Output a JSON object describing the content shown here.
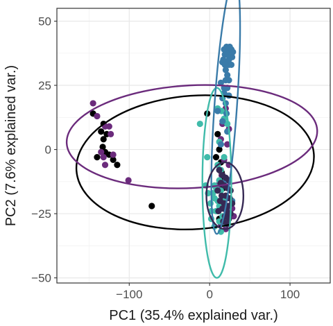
{
  "chart_data": {
    "type": "scatter",
    "title": "",
    "xlabel": "PC1 (35.4% explained var.)",
    "ylabel": "PC2 (7.6% explained var.)",
    "xlim": [
      -190,
      150
    ],
    "ylim": [
      -52,
      55
    ],
    "x_ticks": [
      -100,
      0,
      100
    ],
    "x_tick_labels": [
      "−100",
      "0",
      "100"
    ],
    "y_ticks": [
      -50,
      -25,
      0,
      25,
      50
    ],
    "y_tick_labels": [
      "−50",
      "−25",
      "0",
      "25",
      "50"
    ],
    "grid": true,
    "legend": "none",
    "series": [
      {
        "color": "#000000",
        "points": [
          [
            -145,
            14
          ],
          [
            -135,
            7
          ],
          [
            -132,
            10
          ],
          [
            -132,
            4
          ],
          [
            -128,
            6
          ],
          [
            -133,
            1
          ],
          [
            -125,
            -2
          ],
          [
            -130,
            -1
          ],
          [
            -140,
            -3
          ],
          [
            -120,
            -4
          ],
          [
            -115,
            -6
          ],
          [
            -72,
            -22
          ],
          [
            -3,
            14
          ],
          [
            10,
            6
          ],
          [
            12,
            0
          ],
          [
            8,
            -3
          ],
          [
            14,
            -5
          ],
          [
            15,
            -9
          ],
          [
            18,
            -12
          ],
          [
            20,
            -18
          ],
          [
            16,
            -20
          ],
          [
            22,
            -22
          ],
          [
            25,
            -25
          ],
          [
            12,
            -27
          ],
          [
            17,
            -15
          ]
        ],
        "ellipse": {
          "cx": -18,
          "cy": -5,
          "rx": 148,
          "ry": 26,
          "angle": -4
        }
      },
      {
        "color": "#6b2b7c",
        "points": [
          [
            -145,
            18
          ],
          [
            -140,
            13
          ],
          [
            -130,
            9
          ],
          [
            -125,
            9
          ],
          [
            -123,
            6
          ],
          [
            -120,
            -2
          ],
          [
            -135,
            -1
          ],
          [
            -132,
            -3
          ],
          [
            -130,
            -6
          ],
          [
            -101,
            -12
          ],
          [
            20,
            16
          ],
          [
            16,
            10
          ],
          [
            24,
            8
          ],
          [
            14,
            4
          ],
          [
            22,
            2
          ],
          [
            18,
            -4
          ],
          [
            24,
            -6
          ],
          [
            15,
            -10
          ],
          [
            10,
            -14
          ],
          [
            22,
            -19
          ],
          [
            18,
            -21
          ],
          [
            28,
            -23
          ],
          [
            30,
            -26
          ],
          [
            14,
            -29
          ],
          [
            20,
            -31
          ]
        ],
        "ellipse": {
          "cx": -22,
          "cy": 5,
          "rx": 156,
          "ry": 20,
          "angle": -3
        }
      },
      {
        "color": "#40bbaa",
        "points": [
          [
            -12,
            10
          ],
          [
            10,
            16
          ],
          [
            15,
            15
          ],
          [
            18,
            12
          ],
          [
            22,
            10
          ],
          [
            12,
            3
          ],
          [
            18,
            -3
          ],
          [
            -3,
            -3
          ],
          [
            10,
            -6
          ],
          [
            14,
            -8
          ],
          [
            12,
            -12
          ],
          [
            6,
            -14
          ],
          [
            -5,
            -14
          ],
          [
            -2,
            -17
          ],
          [
            8,
            -15
          ],
          [
            14,
            -16
          ],
          [
            6,
            -19
          ],
          [
            18,
            -19
          ],
          [
            10,
            -20
          ],
          [
            1,
            -21
          ],
          [
            12,
            -22
          ],
          [
            2,
            -24
          ],
          [
            8,
            -24
          ],
          [
            16,
            -26
          ],
          [
            2,
            -27
          ],
          [
            12,
            -28
          ],
          [
            20,
            -29
          ],
          [
            6,
            -30
          ],
          [
            14,
            -32
          ],
          [
            10,
            -24
          ],
          [
            4,
            -17
          ],
          [
            16,
            -21
          ]
        ],
        "ellipse": {
          "cx": 9,
          "cy": -13,
          "rx": 18,
          "ry": 37,
          "angle": 0
        }
      },
      {
        "color": "#3a7ba9",
        "points": [
          [
            16,
            34
          ],
          [
            20,
            34
          ],
          [
            24,
            35
          ],
          [
            28,
            36
          ],
          [
            19,
            37
          ],
          [
            23,
            38
          ],
          [
            27,
            39
          ],
          [
            18,
            39
          ],
          [
            21,
            40
          ],
          [
            25,
            40
          ],
          [
            22,
            37
          ],
          [
            26,
            36
          ],
          [
            17,
            35
          ],
          [
            29,
            38
          ],
          [
            24,
            33
          ],
          [
            19,
            33
          ],
          [
            27,
            33
          ],
          [
            20,
            31
          ],
          [
            22,
            29
          ],
          [
            24,
            27
          ],
          [
            20,
            27
          ],
          [
            14,
            26
          ],
          [
            18,
            24
          ],
          [
            22,
            24
          ],
          [
            18,
            22
          ],
          [
            24,
            21
          ],
          [
            16,
            20
          ],
          [
            20,
            18
          ],
          [
            10,
            15
          ],
          [
            21,
            14
          ],
          [
            16,
            11
          ],
          [
            22,
            7
          ],
          [
            14,
            2
          ],
          [
            20,
            -12
          ],
          [
            24,
            -22
          ],
          [
            28,
            -20
          ]
        ],
        "ellipse": {
          "cx": 20,
          "cy": 17,
          "rx": 14,
          "ry": 50,
          "angle": 4
        }
      },
      {
        "color": "#362954",
        "points": [
          [
            12,
            -8
          ],
          [
            16,
            -10
          ],
          [
            20,
            -11
          ],
          [
            24,
            -12
          ],
          [
            14,
            -13
          ],
          [
            18,
            -14
          ],
          [
            22,
            -15
          ],
          [
            26,
            -16
          ],
          [
            10,
            -16
          ],
          [
            15,
            -18
          ],
          [
            20,
            -18
          ],
          [
            25,
            -19
          ],
          [
            13,
            -20
          ],
          [
            18,
            -21
          ],
          [
            23,
            -22
          ],
          [
            28,
            -21
          ],
          [
            16,
            -23
          ],
          [
            21,
            -24
          ],
          [
            26,
            -25
          ],
          [
            11,
            -24
          ],
          [
            19,
            -26
          ],
          [
            24,
            -27
          ],
          [
            17,
            -28
          ],
          [
            22,
            -29
          ]
        ],
        "ellipse": {
          "cx": 19,
          "cy": -18,
          "rx": 23,
          "ry": 13,
          "angle": 0
        }
      }
    ]
  }
}
